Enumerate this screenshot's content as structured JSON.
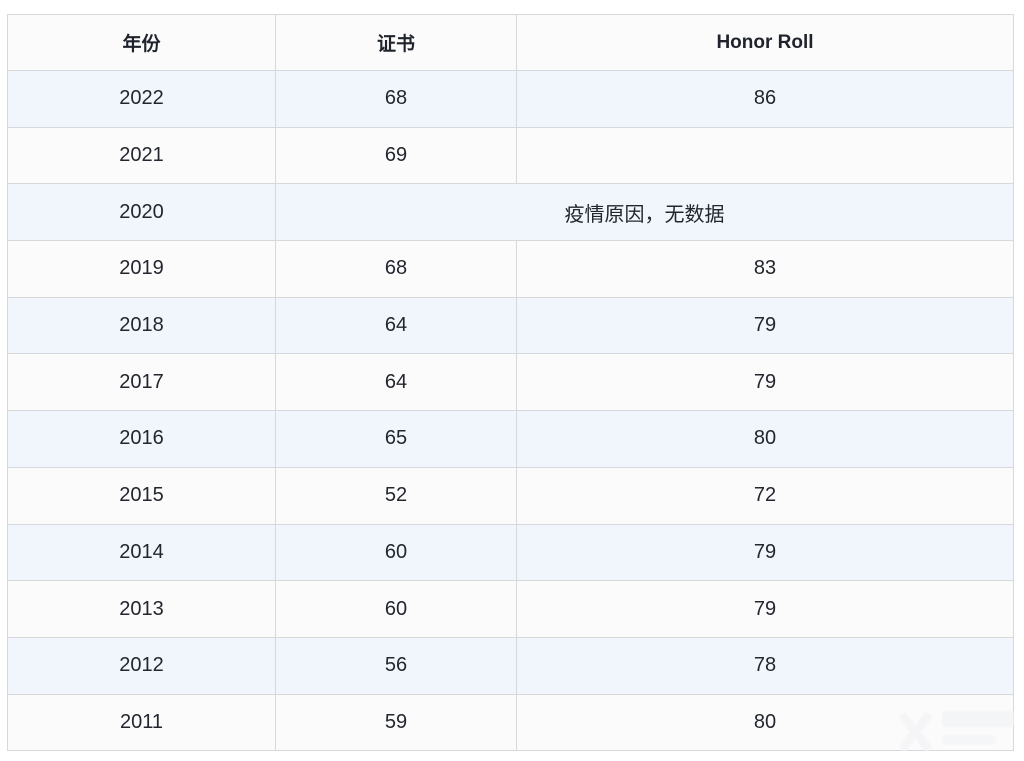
{
  "chart_data": {
    "type": "table",
    "columns": [
      {
        "label": "年份"
      },
      {
        "label": "证书"
      },
      {
        "label": "Honor Roll"
      }
    ],
    "rows": [
      {
        "year": "2022",
        "cert": "68",
        "honor": "86"
      },
      {
        "year": "2021",
        "cert": "69",
        "honor": ""
      },
      {
        "year": "2020",
        "note": "疫情原因，无数据"
      },
      {
        "year": "2019",
        "cert": "68",
        "honor": "83"
      },
      {
        "year": "2018",
        "cert": "64",
        "honor": "79"
      },
      {
        "year": "2017",
        "cert": "64",
        "honor": "79"
      },
      {
        "year": "2016",
        "cert": "65",
        "honor": "80"
      },
      {
        "year": "2015",
        "cert": "52",
        "honor": "72"
      },
      {
        "year": "2014",
        "cert": "60",
        "honor": "79"
      },
      {
        "year": "2013",
        "cert": "60",
        "honor": "79"
      },
      {
        "year": "2012",
        "cert": "56",
        "honor": "78"
      },
      {
        "year": "2011",
        "cert": "59",
        "honor": "80"
      }
    ],
    "layout_hints": {
      "merged_row_year": "2020",
      "merged_span_columns": [
        "证书",
        "Honor Roll"
      ],
      "empty_cells": [
        {
          "year": "2021",
          "column": "Honor Roll"
        }
      ],
      "striped_rows": "odd data rows tinted light blue"
    }
  },
  "colors": {
    "stripe_row_bg": "#f1f6fc",
    "plain_row_bg": "#fbfbfb",
    "header_bg": "#fbfbfb",
    "border": "#d6d8dc",
    "text": "#23262e"
  },
  "watermark": {
    "present": true,
    "position": "bottom-right",
    "legible": false
  }
}
